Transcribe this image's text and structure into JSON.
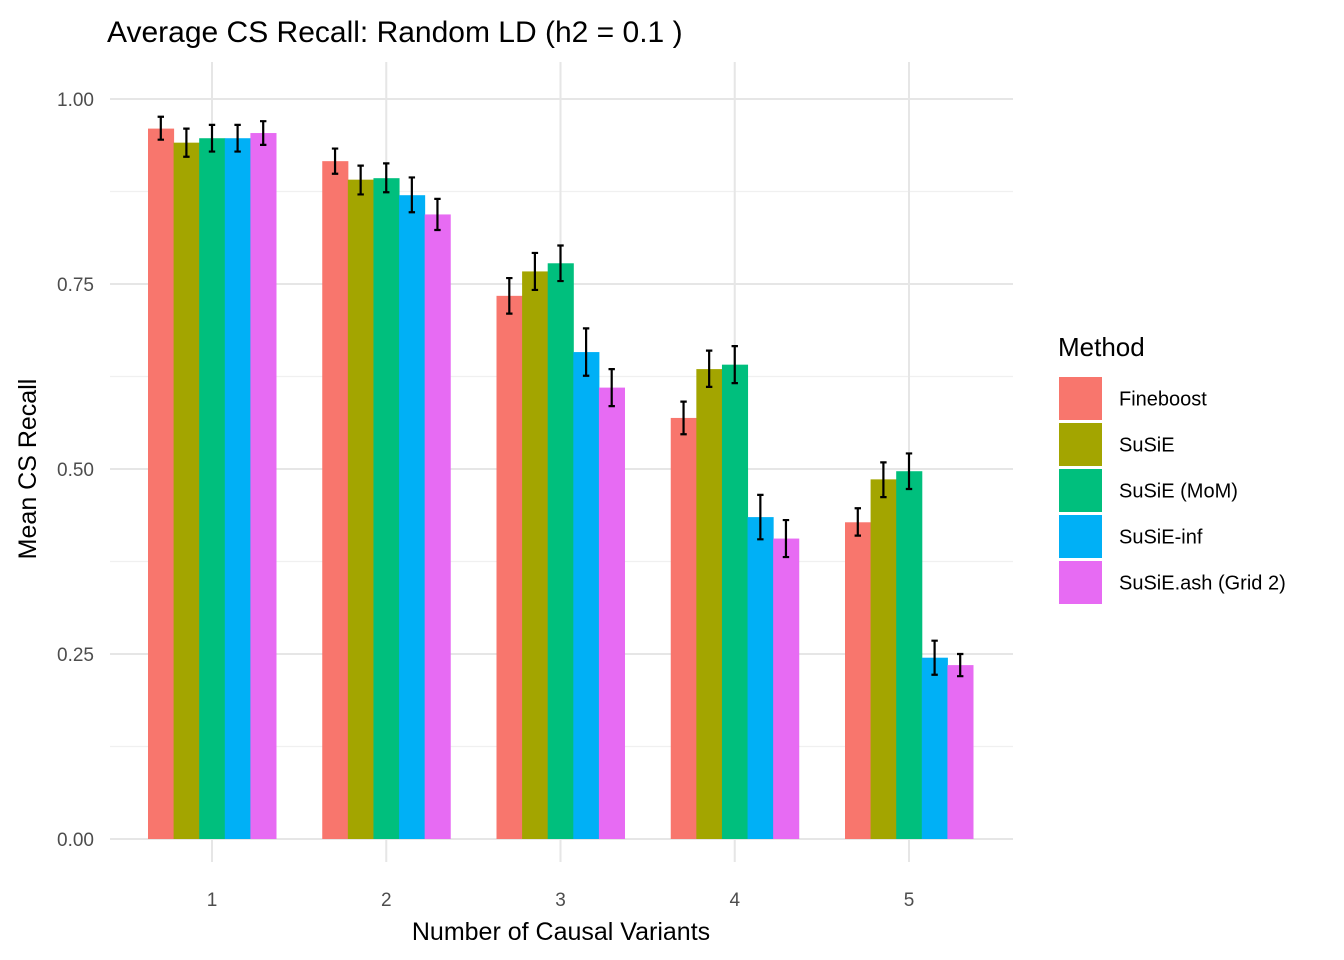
{
  "chart_data": {
    "type": "bar",
    "title": "Average CS Recall: Random LD (h2 = 0.1 )",
    "xlabel": "Number of Causal Variants",
    "ylabel": "Mean CS Recall",
    "categories": [
      "1",
      "2",
      "3",
      "4",
      "5"
    ],
    "ylim": [
      0,
      1
    ],
    "yticks": [
      0.0,
      0.25,
      0.5,
      0.75,
      1.0
    ],
    "ytick_labels": [
      "0.00",
      "0.25",
      "0.50",
      "0.75",
      "1.00"
    ],
    "grid": true,
    "legend": {
      "title": "Method",
      "position": "right"
    },
    "series": [
      {
        "name": "Fineboost",
        "color": "#F8766D",
        "values": [
          0.96,
          0.916,
          0.734,
          0.569,
          0.428
        ],
        "lower": [
          0.945,
          0.899,
          0.71,
          0.547,
          0.41
        ],
        "upper": [
          0.976,
          0.933,
          0.758,
          0.591,
          0.447
        ]
      },
      {
        "name": "SuSiE",
        "color": "#A3A500",
        "values": [
          0.941,
          0.891,
          0.767,
          0.635,
          0.486
        ],
        "lower": [
          0.922,
          0.871,
          0.742,
          0.611,
          0.462
        ],
        "upper": [
          0.96,
          0.91,
          0.792,
          0.66,
          0.509
        ]
      },
      {
        "name": "SuSiE (MoM)",
        "color": "#00BF7D",
        "values": [
          0.947,
          0.893,
          0.778,
          0.641,
          0.497
        ],
        "lower": [
          0.929,
          0.874,
          0.754,
          0.616,
          0.473
        ],
        "upper": [
          0.965,
          0.913,
          0.802,
          0.666,
          0.521
        ]
      },
      {
        "name": "SuSiE-inf",
        "color": "#00B0F6",
        "values": [
          0.947,
          0.87,
          0.658,
          0.435,
          0.245
        ],
        "lower": [
          0.929,
          0.847,
          0.626,
          0.405,
          0.222
        ],
        "upper": [
          0.965,
          0.894,
          0.69,
          0.465,
          0.268
        ]
      },
      {
        "name": "SuSiE.ash (Grid 2)",
        "color": "#E76BF3",
        "values": [
          0.954,
          0.844,
          0.61,
          0.406,
          0.235
        ],
        "lower": [
          0.938,
          0.823,
          0.585,
          0.381,
          0.22
        ],
        "upper": [
          0.97,
          0.865,
          0.635,
          0.431,
          0.25
        ]
      }
    ]
  }
}
